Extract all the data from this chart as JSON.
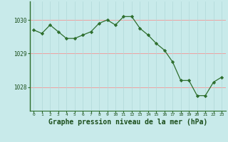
{
  "x": [
    0,
    1,
    2,
    3,
    4,
    5,
    6,
    7,
    8,
    9,
    10,
    11,
    12,
    13,
    14,
    15,
    16,
    17,
    18,
    19,
    20,
    21,
    22,
    23
  ],
  "y": [
    1029.7,
    1029.6,
    1029.85,
    1029.65,
    1029.45,
    1029.45,
    1029.55,
    1029.65,
    1029.9,
    1030.0,
    1029.85,
    1030.1,
    1030.1,
    1029.75,
    1029.55,
    1029.3,
    1029.1,
    1028.75,
    1028.2,
    1028.2,
    1027.75,
    1027.75,
    1028.15,
    1028.3
  ],
  "line_color": "#2d6e2d",
  "marker": "D",
  "marker_size": 2.2,
  "bg_color": "#c8eaea",
  "grid_color_v": "#b0d8d8",
  "grid_color_h": "#f0a0a0",
  "yticks": [
    1028,
    1029,
    1030
  ],
  "xticks": [
    0,
    1,
    2,
    3,
    4,
    5,
    6,
    7,
    8,
    9,
    10,
    11,
    12,
    13,
    14,
    15,
    16,
    17,
    18,
    19,
    20,
    21,
    22,
    23
  ],
  "xlabel": "Graphe pression niveau de la mer (hPa)",
  "xlabel_fontsize": 7,
  "axis_label_color": "#1a4d1a",
  "tick_label_color": "#1a4d1a",
  "spine_color": "#2d6e2d",
  "ylim": [
    1027.3,
    1030.55
  ],
  "xlim": [
    -0.5,
    23.5
  ]
}
